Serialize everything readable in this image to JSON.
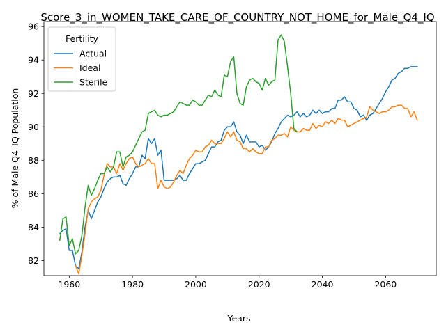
{
  "chart_data": {
    "type": "line",
    "title": "Score_3_in_WOMEN_TAKE_CARE_OF_COUNTRY_NOT_HOME_for_Male_Q4_IQ",
    "xlabel": "Years",
    "ylabel": "% of Male Q4_IQ Population",
    "xlim": [
      1952,
      2076
    ],
    "ylim": [
      81.1,
      96.3
    ],
    "xticks": [
      1960,
      1980,
      2000,
      2020,
      2040,
      2060
    ],
    "yticks": [
      82,
      84,
      86,
      88,
      90,
      92,
      94,
      96
    ],
    "grid": false,
    "legend": {
      "title": "Fertility",
      "placement": "top-left"
    },
    "x": [
      1957,
      1958,
      1959,
      1960,
      1961,
      1962,
      1963,
      1964,
      1965,
      1966,
      1967,
      1968,
      1969,
      1970,
      1971,
      1972,
      1973,
      1974,
      1975,
      1976,
      1977,
      1978,
      1979,
      1980,
      1981,
      1982,
      1983,
      1984,
      1985,
      1986,
      1987,
      1988,
      1989,
      1990,
      1991,
      1992,
      1993,
      1994,
      1995,
      1996,
      1997,
      1998,
      1999,
      2000,
      2001,
      2002,
      2003,
      2004,
      2005,
      2006,
      2007,
      2008,
      2009,
      2010,
      2011,
      2012,
      2013,
      2014,
      2015,
      2016,
      2017,
      2018,
      2019,
      2020,
      2021,
      2022,
      2023,
      2024,
      2025,
      2026,
      2027,
      2028,
      2029,
      2030,
      2031,
      2032,
      2033,
      2034,
      2035,
      2036,
      2037,
      2038,
      2039,
      2040,
      2041,
      2042,
      2043,
      2044,
      2045,
      2046,
      2047,
      2048,
      2049,
      2050,
      2051,
      2052,
      2053,
      2054,
      2055,
      2056,
      2057,
      2058,
      2059,
      2060,
      2061,
      2062,
      2063,
      2064,
      2065,
      2066,
      2067,
      2068,
      2069,
      2070
    ],
    "series": [
      {
        "name": "Actual",
        "color": "#1f77b4",
        "values": [
          83.6,
          83.8,
          83.9,
          82.6,
          82.6,
          81.7,
          81.5,
          82.5,
          84.0,
          85.0,
          84.5,
          85.0,
          85.5,
          85.8,
          86.3,
          86.7,
          86.9,
          87.0,
          87.0,
          87.1,
          86.6,
          86.5,
          86.9,
          87.2,
          87.6,
          87.6,
          88.3,
          88.1,
          89.3,
          89.0,
          89.3,
          88.3,
          88.6,
          86.8,
          86.8,
          86.8,
          86.8,
          86.9,
          87.1,
          86.8,
          86.8,
          87.2,
          87.5,
          87.8,
          87.8,
          87.9,
          88.0,
          88.4,
          88.8,
          88.8,
          89.1,
          89.2,
          89.8,
          90.0,
          90.0,
          90.3,
          89.7,
          89.5,
          89.0,
          89.5,
          89.1,
          89.1,
          89.1,
          88.8,
          88.9,
          88.6,
          88.8,
          89.1,
          89.6,
          89.9,
          90.3,
          90.5,
          90.7,
          90.6,
          90.7,
          90.9,
          90.6,
          90.8,
          90.6,
          90.7,
          91.0,
          90.8,
          91.0,
          90.8,
          90.9,
          90.9,
          91.1,
          91.1,
          91.6,
          91.6,
          91.8,
          91.5,
          91.5,
          91.1,
          91.0,
          90.6,
          90.7,
          90.4,
          90.7,
          90.8,
          91.1,
          91.4,
          91.7,
          92.1,
          92.4,
          92.8,
          92.9,
          93.2,
          93.3,
          93.5,
          93.5,
          93.6,
          93.6,
          93.6
        ]
      },
      {
        "name": "Ideal",
        "color": "#ff7f0e",
        "values": [
          null,
          null,
          null,
          null,
          null,
          81.7,
          81.2,
          82.3,
          83.6,
          85.1,
          85.5,
          85.7,
          85.8,
          86.2,
          87.1,
          87.8,
          87.6,
          87.6,
          87.2,
          87.8,
          87.4,
          87.8,
          88.1,
          88.2,
          87.8,
          87.6,
          87.7,
          87.8,
          88.1,
          87.8,
          87.8,
          86.3,
          86.8,
          86.4,
          86.3,
          86.4,
          86.7,
          87.1,
          87.4,
          87.2,
          87.7,
          88.1,
          88.3,
          88.6,
          88.5,
          88.5,
          88.8,
          88.9,
          89.2,
          89.0,
          89.0,
          89.0,
          89.3,
          89.7,
          89.4,
          89.7,
          89.2,
          89.1,
          88.7,
          88.7,
          88.5,
          88.7,
          88.5,
          88.4,
          88.4,
          88.8,
          88.8,
          89.2,
          89.3,
          89.5,
          89.5,
          89.6,
          89.4,
          90.0,
          89.8,
          89.7,
          89.7,
          89.9,
          89.8,
          89.8,
          90.2,
          89.9,
          90.1,
          90.0,
          90.3,
          90.2,
          90.4,
          90.2,
          90.5,
          90.4,
          90.4,
          90.0,
          90.1,
          90.2,
          90.3,
          90.4,
          90.5,
          90.6,
          91.2,
          91.0,
          90.9,
          90.8,
          90.9,
          90.9,
          91.0,
          91.2,
          91.2,
          91.3,
          91.3,
          91.1,
          91.1,
          90.6,
          90.9,
          90.4
        ]
      },
      {
        "name": "Sterile",
        "color": "#2ca02c",
        "values": [
          83.2,
          84.5,
          84.6,
          82.9,
          83.3,
          82.4,
          82.6,
          83.5,
          85.2,
          86.5,
          85.9,
          86.3,
          86.8,
          87.2,
          87.2,
          87.6,
          87.3,
          87.6,
          88.5,
          88.5,
          87.6,
          88.2,
          88.3,
          88.5,
          88.9,
          89.3,
          89.7,
          89.8,
          90.8,
          90.9,
          91.0,
          90.7,
          90.6,
          90.7,
          90.7,
          90.8,
          90.9,
          91.2,
          91.5,
          91.4,
          91.3,
          91.3,
          91.6,
          91.5,
          91.3,
          91.3,
          91.6,
          91.9,
          91.8,
          92.2,
          91.9,
          91.8,
          93.1,
          93.0,
          93.9,
          94.2,
          92.0,
          91.4,
          91.3,
          92.4,
          92.8,
          92.9,
          92.7,
          92.6,
          92.2,
          92.9,
          92.5,
          92.7,
          92.8,
          95.2,
          95.5,
          95.1,
          93.6,
          92.0,
          89.9,
          89.7,
          null,
          null,
          null,
          null,
          null,
          null,
          null,
          null,
          null,
          null,
          null,
          null,
          null,
          null,
          null,
          null,
          null,
          null,
          null,
          null,
          null,
          null,
          null,
          null,
          null,
          null,
          null,
          null,
          null,
          null,
          null,
          null,
          null,
          null,
          null,
          null,
          null,
          null
        ]
      }
    ]
  }
}
